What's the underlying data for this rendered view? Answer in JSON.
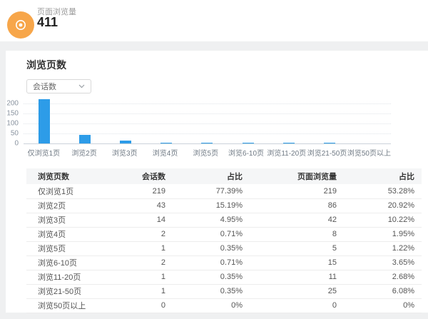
{
  "stat": {
    "label": "页面浏览量",
    "value": "411",
    "icon": "eye-icon"
  },
  "section": {
    "title": "浏览页数"
  },
  "filter": {
    "selected": "会话数"
  },
  "chart_data": {
    "type": "bar",
    "title": "浏览页数",
    "series_name": "会话数",
    "categories": [
      "仅浏览1页",
      "浏览2页",
      "浏览3页",
      "浏览4页",
      "浏览5页",
      "浏览6-10页",
      "浏览11-20页",
      "浏览21-50页",
      "浏览50页以上"
    ],
    "values": [
      219,
      43,
      14,
      2,
      1,
      2,
      1,
      1,
      0
    ],
    "xlabel": "",
    "ylabel": "",
    "ylim": [
      0,
      200
    ],
    "yticks": [
      0,
      50,
      100,
      150,
      200
    ],
    "grid": true,
    "legend": "none",
    "bar_color": "#2D9CE8"
  },
  "table": {
    "headers": [
      "浏览页数",
      "会话数",
      "占比",
      "页面浏览量",
      "占比"
    ],
    "rows": [
      [
        "仅浏览1页",
        "219",
        "77.39%",
        "219",
        "53.28%"
      ],
      [
        "浏览2页",
        "43",
        "15.19%",
        "86",
        "20.92%"
      ],
      [
        "浏览3页",
        "14",
        "4.95%",
        "42",
        "10.22%"
      ],
      [
        "浏览4页",
        "2",
        "0.71%",
        "8",
        "1.95%"
      ],
      [
        "浏览5页",
        "1",
        "0.35%",
        "5",
        "1.22%"
      ],
      [
        "浏览6-10页",
        "2",
        "0.71%",
        "15",
        "3.65%"
      ],
      [
        "浏览11-20页",
        "1",
        "0.35%",
        "11",
        "2.68%"
      ],
      [
        "浏览21-50页",
        "1",
        "0.35%",
        "25",
        "6.08%"
      ],
      [
        "浏览50页以上",
        "0",
        "0%",
        "0",
        "0%"
      ]
    ]
  },
  "colors": {
    "accent_orange": "#F7A64A",
    "bar_blue": "#2D9CE8"
  }
}
